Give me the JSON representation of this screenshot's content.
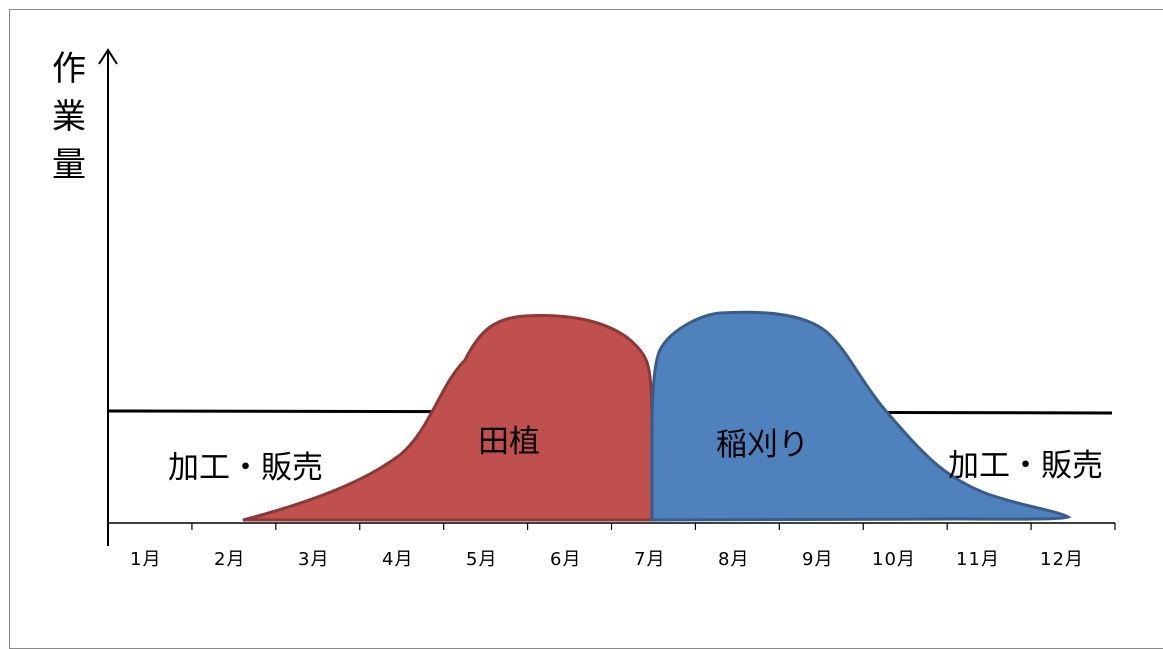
{
  "diagram": {
    "y_axis_label": [
      "作",
      "業",
      "量"
    ],
    "months": [
      "1月",
      "2月",
      "3月",
      "4月",
      "5月",
      "6月",
      "7月",
      "8月",
      "9月",
      "10月",
      "11月",
      "12月"
    ],
    "regions": {
      "planting": {
        "label": "田植",
        "fill": "#C0504D",
        "stroke": "#8C3836"
      },
      "harvest": {
        "label": "稲刈り",
        "fill": "#4F81BD",
        "stroke": "#385D8A"
      },
      "processing_left": {
        "label": "加工・販売"
      },
      "processing_right": {
        "label": "加工・販売"
      }
    },
    "colors": {
      "axis": "#000000",
      "baseline": "#000000",
      "frame": "#8A8A8A"
    }
  }
}
